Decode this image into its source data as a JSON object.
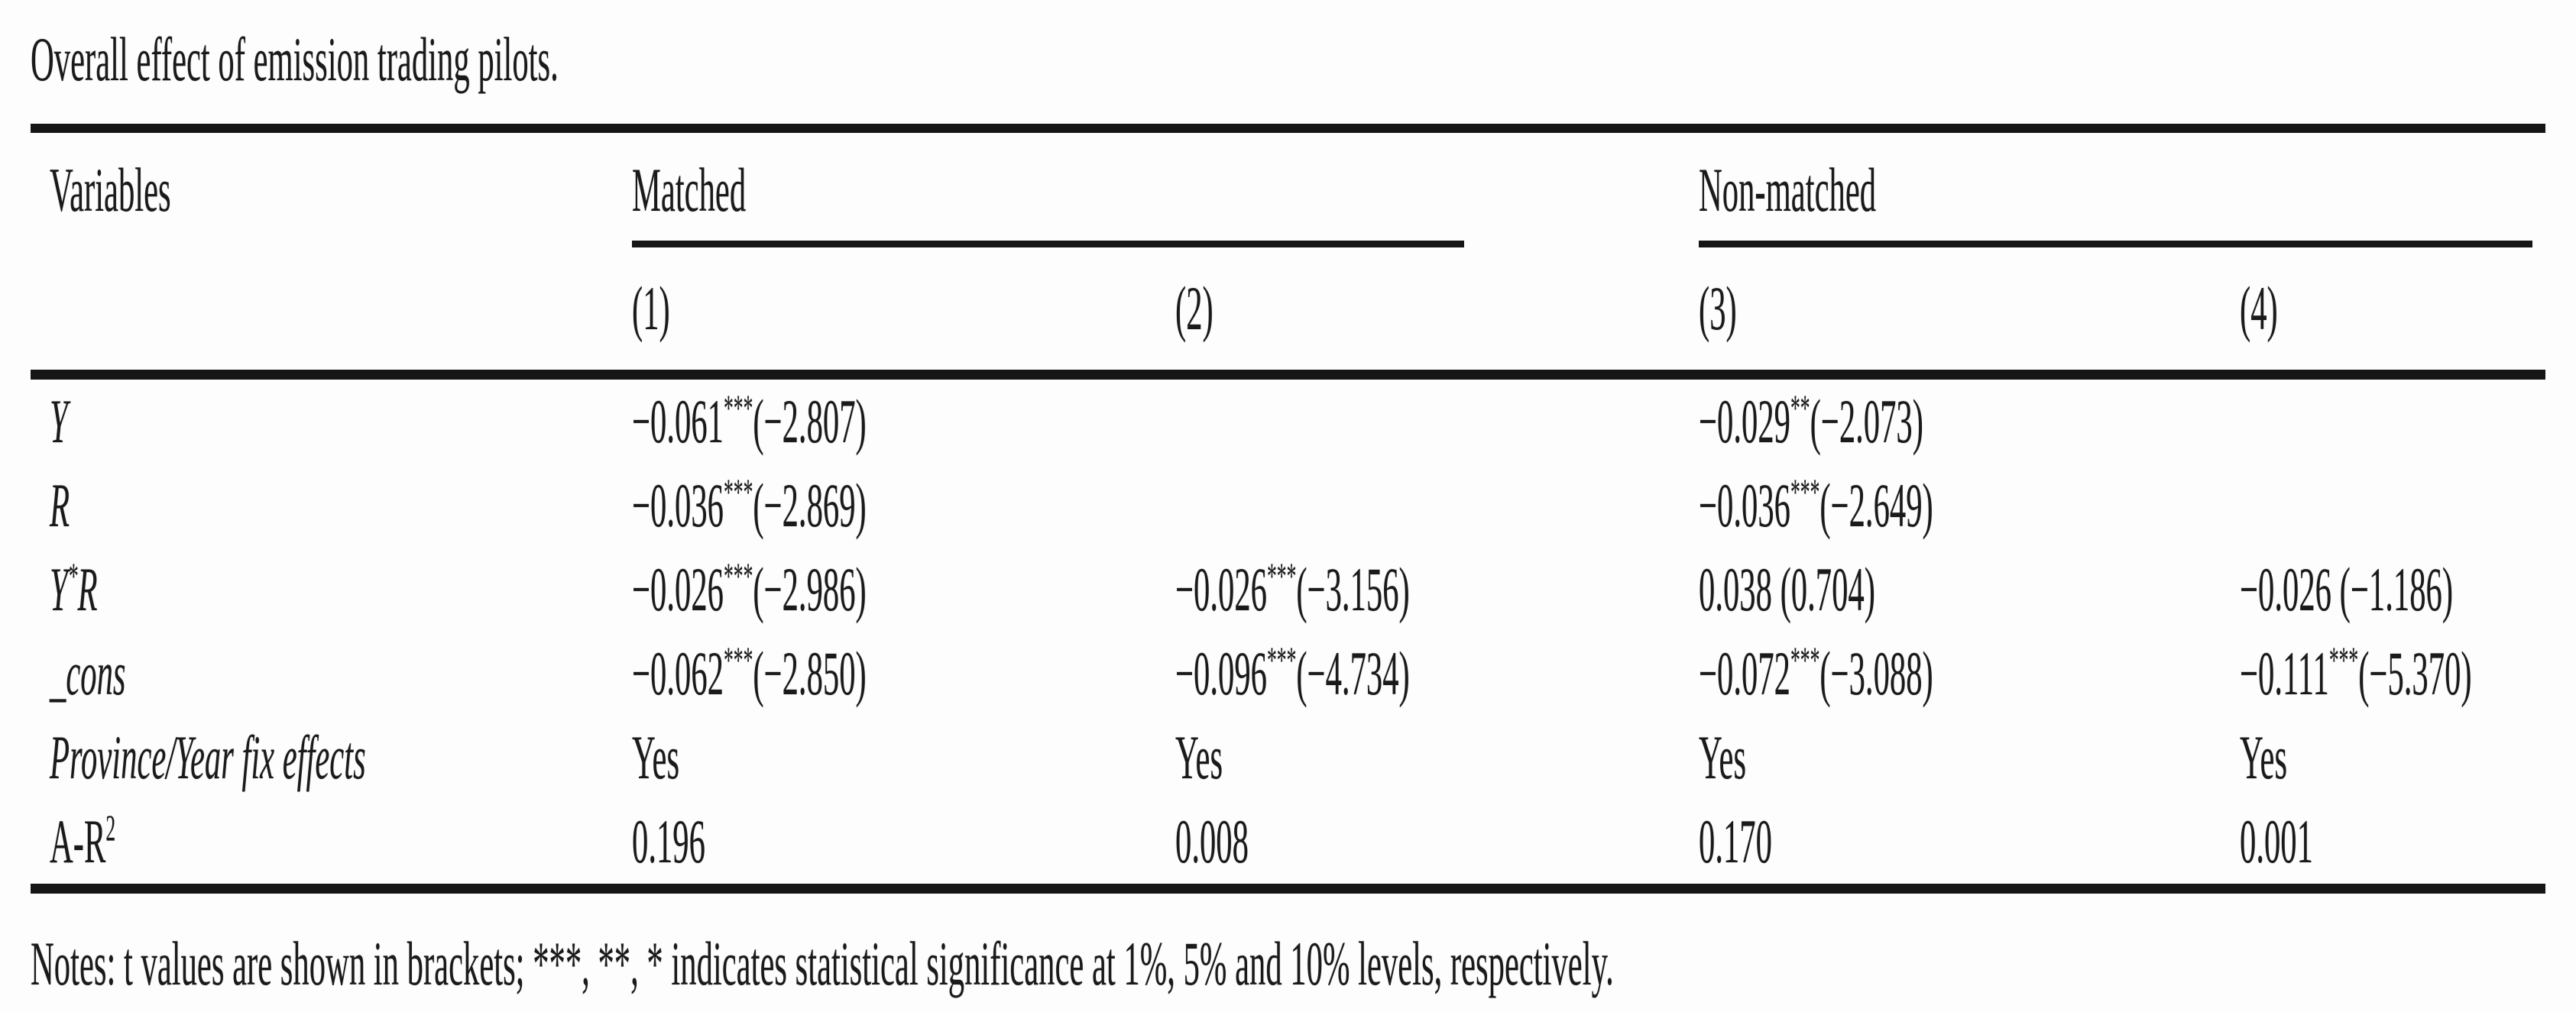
{
  "colors": {
    "ink": "#1a1a1a",
    "rule": "#161616",
    "background": "#fdfdfd"
  },
  "title": "Overall effect of emission trading pilots.",
  "table": {
    "variables_header": "Variables",
    "groups": [
      {
        "label": "Matched"
      },
      {
        "label": "Non-matched"
      }
    ],
    "col_headers": [
      "(1)",
      "(2)",
      "(3)",
      "(4)"
    ],
    "rows": [
      {
        "label": {
          "pre": "Y"
        },
        "cells": [
          {
            "coef": "−0.061",
            "stars": "***",
            "t": "(−2.807)"
          },
          null,
          {
            "coef": "−0.029",
            "stars": "**",
            "t": "(−2.073)"
          },
          null
        ]
      },
      {
        "label": {
          "pre": "R"
        },
        "cells": [
          {
            "coef": "−0.036",
            "stars": "***",
            "t": "(−2.869)"
          },
          null,
          {
            "coef": "−0.036",
            "stars": "***",
            "t": "(−2.649)"
          },
          null
        ]
      },
      {
        "label": {
          "pre": "Y",
          "sup": "*",
          "post": "R"
        },
        "cells": [
          {
            "coef": "−0.026",
            "stars": "***",
            "t": "(−2.986)"
          },
          {
            "coef": "−0.026",
            "stars": "***",
            "t": "(−3.156)"
          },
          {
            "coef": "0.038",
            "stars": "",
            "t": " (0.704)"
          },
          {
            "coef": "−0.026",
            "stars": "",
            "t": " (−1.186)"
          }
        ]
      },
      {
        "label": {
          "pre": "_cons"
        },
        "cells": [
          {
            "coef": "−0.062",
            "stars": "***",
            "t": "(−2.850)"
          },
          {
            "coef": "−0.096",
            "stars": "***",
            "t": "(−4.734)"
          },
          {
            "coef": "−0.072",
            "stars": "***",
            "t": "(−3.088)"
          },
          {
            "coef": "−0.111",
            "stars": "***",
            "t": "(−5.370)"
          }
        ]
      },
      {
        "label": {
          "pre": "Province/Year fix effects"
        },
        "cells": [
          {
            "coef": "Yes"
          },
          {
            "coef": "Yes"
          },
          {
            "coef": "Yes"
          },
          {
            "coef": "Yes"
          }
        ]
      },
      {
        "label": {
          "pre": "A-R",
          "sup": "2"
        },
        "cells": [
          {
            "coef": "0.196"
          },
          {
            "coef": "0.008"
          },
          {
            "coef": "0.170"
          },
          {
            "coef": "0.001"
          }
        ]
      }
    ]
  },
  "notes": "Notes: t values are shown in brackets; ***, **, * indicates statistical significance at 1%, 5% and 10% levels, respectively."
}
